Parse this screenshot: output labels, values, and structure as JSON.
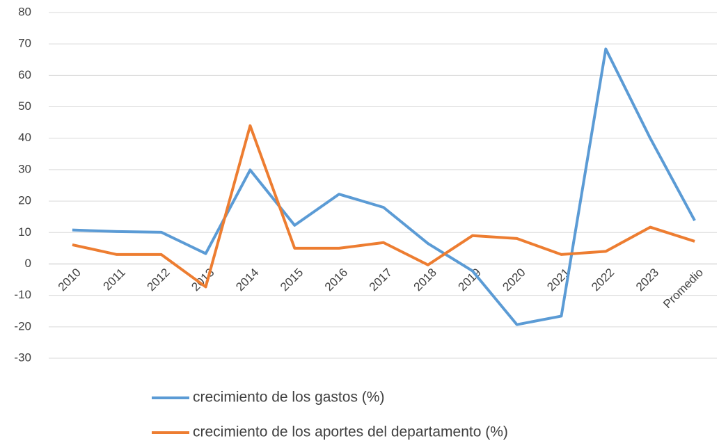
{
  "chart_data": {
    "type": "line",
    "categories": [
      "2010",
      "2011",
      "2012",
      "2013",
      "2014",
      "2015",
      "2016",
      "2017",
      "2018",
      "2019",
      "2020",
      "2021",
      "2022",
      "2023",
      "Promedio"
    ],
    "series": [
      {
        "name": "crecimiento de los gastos (%)",
        "color": "#5b9bd5",
        "values": [
          10.8,
          10.3,
          10.1,
          3.3,
          29.9,
          12.3,
          22.2,
          18,
          6.5,
          -2.2,
          -19.3,
          -16.6,
          68.4,
          40,
          13.8
        ]
      },
      {
        "name": "crecimiento de los aportes del departamento (%)",
        "color": "#ed7d31",
        "values": [
          6.1,
          3,
          3,
          -7.3,
          44,
          5,
          5,
          6.8,
          -0.3,
          9,
          8.1,
          3,
          4,
          11.7,
          7.2
        ]
      }
    ],
    "ylim": [
      -30,
      80
    ],
    "yticks": [
      -30,
      -20,
      -10,
      0,
      10,
      20,
      30,
      40,
      50,
      60,
      70,
      80
    ],
    "grid": true,
    "legend": "bottom"
  }
}
